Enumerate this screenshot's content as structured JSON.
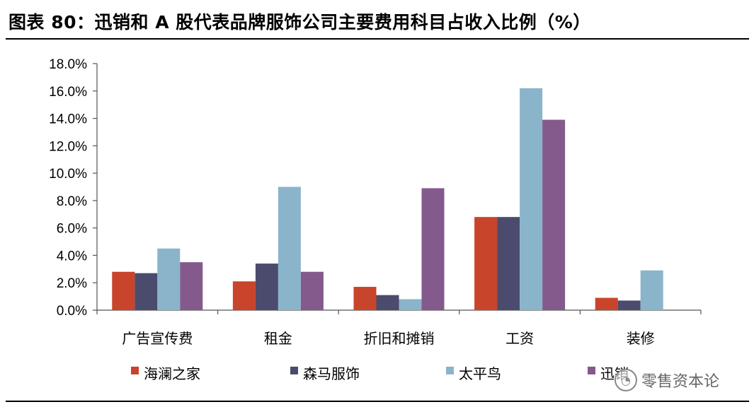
{
  "header": {
    "title": "图表 80：迅销和 A 股代表品牌服饰公司主要费用科目占收入比例（%）"
  },
  "watermark": {
    "text": "零售资本论",
    "icon": "wechat-icon"
  },
  "chart_data": {
    "type": "bar",
    "categories": [
      "广告宣传费",
      "租金",
      "折旧和摊销",
      "工资",
      "装修"
    ],
    "series": [
      {
        "name": "海澜之家",
        "color": "#C8442A",
        "values": [
          2.8,
          2.1,
          1.7,
          6.8,
          0.9
        ]
      },
      {
        "name": "森马服饰",
        "color": "#4B4B6E",
        "values": [
          2.7,
          3.4,
          1.1,
          6.8,
          0.7
        ]
      },
      {
        "name": "太平鸟",
        "color": "#8AB4C9",
        "values": [
          4.5,
          9.0,
          0.8,
          16.2,
          2.9
        ]
      },
      {
        "name": "迅销",
        "color": "#845A8C",
        "values": [
          3.5,
          2.8,
          8.9,
          13.9,
          null
        ]
      }
    ],
    "yticks": [
      "0.0%",
      "2.0%",
      "4.0%",
      "6.0%",
      "8.0%",
      "10.0%",
      "12.0%",
      "14.0%",
      "16.0%",
      "18.0%"
    ],
    "ylim": [
      0,
      18
    ],
    "ystep": 2,
    "legend_position": "bottom",
    "grid": false
  }
}
